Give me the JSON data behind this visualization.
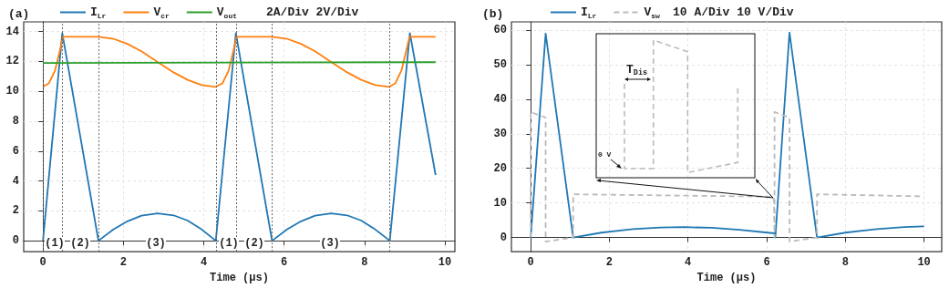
{
  "chart_data": [
    {
      "type": "line",
      "title": "(a)",
      "xlabel": "Time (μs)",
      "xlim": [
        -0.48,
        10.25
      ],
      "ylim": [
        -0.73,
        14.65
      ],
      "xticks": [
        0,
        2,
        4,
        6,
        8,
        10
      ],
      "yticks": [
        0,
        2,
        4,
        6,
        8,
        10,
        12,
        14
      ],
      "grid": true,
      "legend": "top",
      "marker": "none",
      "line_style": "solid",
      "series": [
        {
          "name": "I$_{Lr}$",
          "color": "#1f77b4",
          "x": [
            0,
            0.48,
            1.38,
            1.75,
            2.1,
            2.45,
            2.85,
            3.25,
            3.6,
            3.95,
            4.3,
            4.8,
            5.7,
            6.07,
            6.42,
            6.77,
            7.17,
            7.57,
            7.92,
            8.27,
            8.63,
            9.13,
            9.77
          ],
          "values": [
            0,
            13.9,
            0,
            0.75,
            1.3,
            1.68,
            1.83,
            1.7,
            1.35,
            0.75,
            0,
            13.9,
            0,
            0.75,
            1.3,
            1.68,
            1.83,
            1.7,
            1.35,
            0.75,
            0,
            13.9,
            4.4
          ]
        },
        {
          "name": "V$_{cr}$",
          "color": "#ff7f0e",
          "x": [
            0,
            0.15,
            0.3,
            0.4,
            0.5,
            1.38,
            1.75,
            2.1,
            2.45,
            2.85,
            3.25,
            3.6,
            3.95,
            4.3,
            4.47,
            4.62,
            4.72,
            4.82,
            5.7,
            6.07,
            6.42,
            6.77,
            7.17,
            7.57,
            7.92,
            8.27,
            8.62,
            8.77,
            8.92,
            9.02,
            9.12,
            9.77
          ],
          "values": [
            10.3,
            10.55,
            11.4,
            12.5,
            13.65,
            13.65,
            13.52,
            13.18,
            12.68,
            11.97,
            11.27,
            10.77,
            10.42,
            10.3,
            10.55,
            11.4,
            12.5,
            13.65,
            13.65,
            13.52,
            13.18,
            12.68,
            11.97,
            11.27,
            10.77,
            10.42,
            10.3,
            10.55,
            11.4,
            12.5,
            13.65,
            13.65
          ]
        },
        {
          "name": "V$_{out}$",
          "color": "#2ca02c",
          "x": [
            0,
            9.77
          ],
          "values": [
            11.9,
            11.95
          ]
        }
      ],
      "ref_lines": [
        {
          "axis": "x",
          "value": 0,
          "color": "#666666",
          "line_style": "dotted"
        },
        {
          "axis": "x",
          "value": 0.48,
          "color": "#666666",
          "line_style": "dotted"
        },
        {
          "axis": "x",
          "value": 1.38,
          "color": "#666666",
          "line_style": "dotted"
        },
        {
          "axis": "x",
          "value": 4.32,
          "color": "#666666",
          "line_style": "dotted"
        },
        {
          "axis": "x",
          "value": 4.8,
          "color": "#666666",
          "line_style": "dotted"
        },
        {
          "axis": "x",
          "value": 5.7,
          "color": "#666666",
          "line_style": "dotted"
        },
        {
          "axis": "x",
          "value": 8.63,
          "color": "#666666",
          "line_style": "dotted"
        }
      ],
      "annotations": [
        "2A/Div   2V/Div",
        "(1)",
        "(2)",
        "(3)",
        "(1)",
        "(2)",
        "(3)"
      ]
    },
    {
      "type": "line",
      "title": "(b)",
      "xlabel": "Time (μs)",
      "xlim": [
        -0.49,
        10.45
      ],
      "ylim": [
        -4.1,
        62.4
      ],
      "xticks": [
        0,
        2,
        4,
        6,
        8,
        10
      ],
      "yticks": [
        0,
        10,
        20,
        30,
        40,
        50,
        60
      ],
      "grid": true,
      "legend": "top",
      "marker": "none",
      "series": [
        {
          "name": "I$_{Lr}$",
          "color": "#1f77b4",
          "line_style": "solid",
          "x": [
            0,
            0.38,
            1.08,
            1.8,
            2.6,
            3.3,
            3.9,
            4.6,
            5.3,
            6.2,
            6.22,
            6.58,
            7.28,
            8,
            8.8,
            9.5,
            10
          ],
          "values": [
            0,
            59,
            0,
            1.4,
            2.4,
            2.9,
            3,
            2.8,
            2.2,
            1.2,
            0,
            59.3,
            0,
            1.4,
            2.4,
            3,
            3.2
          ]
        },
        {
          "name": "V$_{sw}$",
          "color": "#bbbbbb",
          "line_style": "dashed",
          "x": [
            0,
            0,
            0.38,
            0.38,
            1.08,
            1.08,
            6.18,
            6.2,
            6.2,
            6.58,
            6.58,
            7.28,
            7.28,
            10
          ],
          "values": [
            0,
            36.3,
            34.7,
            -1.2,
            0,
            12.5,
            11.8,
            0,
            36.3,
            34.7,
            -1.2,
            0,
            12.5,
            11.9
          ]
        }
      ],
      "annotations": [
        "10 A/Div  10 V/Div",
        "T$_{Dis}$",
        "0 V"
      ]
    }
  ]
}
